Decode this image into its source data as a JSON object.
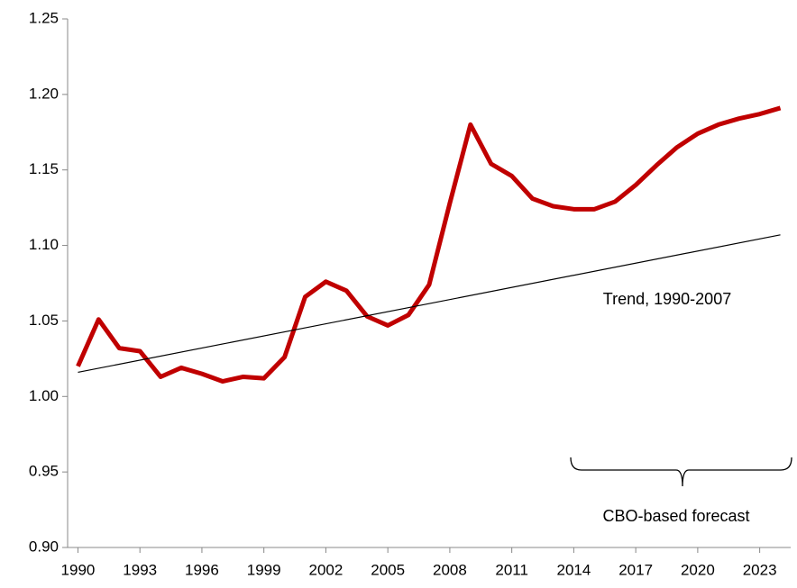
{
  "chart_data": {
    "type": "line",
    "x": [
      1990,
      1991,
      1992,
      1993,
      1994,
      1995,
      1996,
      1997,
      1998,
      1999,
      2000,
      2001,
      2002,
      2003,
      2004,
      2005,
      2006,
      2007,
      2008,
      2009,
      2010,
      2011,
      2012,
      2013,
      2014,
      2015,
      2016,
      2017,
      2018,
      2019,
      2020,
      2021,
      2022,
      2023,
      2024
    ],
    "series": [
      {
        "color": "#c00000",
        "values": [
          1.02,
          1.051,
          1.032,
          1.03,
          1.013,
          1.019,
          1.015,
          1.01,
          1.013,
          1.012,
          1.026,
          1.066,
          1.076,
          1.07,
          1.053,
          1.047,
          1.054,
          1.074,
          1.128,
          1.18,
          1.154,
          1.146,
          1.131,
          1.126,
          1.124,
          1.124,
          1.129,
          1.14,
          1.153,
          1.165,
          1.174,
          1.18,
          1.184,
          1.187,
          1.191
        ]
      },
      {
        "color": "#000000",
        "x": [
          1990,
          2024
        ],
        "values": [
          1.016,
          1.107
        ]
      }
    ],
    "annotations": [
      "Trend, 1990-2007",
      "CBO-based forecast"
    ],
    "xlim": [
      1989.5,
      2024.5
    ],
    "xticks": [
      1990,
      1993,
      1996,
      1999,
      2002,
      2005,
      2008,
      2011,
      2014,
      2017,
      2020,
      2023
    ],
    "ylim": [
      0.9,
      1.25
    ],
    "yticks": [
      {
        "value": 0.9,
        "label": "0.90"
      },
      0.95,
      {
        "value": 1.0,
        "label": "1.00"
      },
      1.05,
      {
        "value": 1.1,
        "label": "1.10"
      },
      1.15,
      {
        "value": 1.2,
        "label": "1.20"
      },
      1.25
    ]
  }
}
